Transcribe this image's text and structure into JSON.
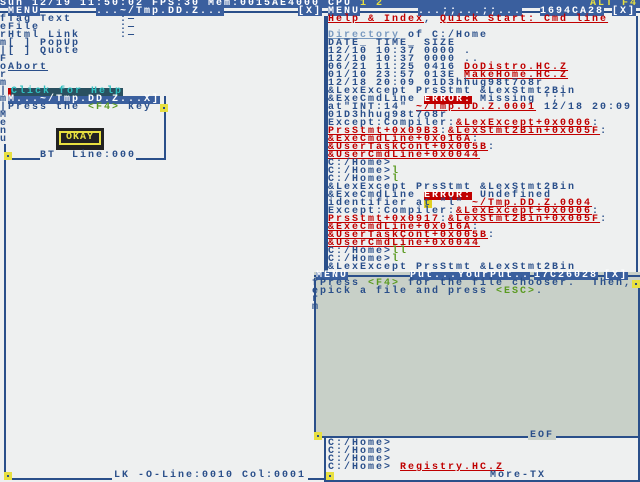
{
  "topbar": {
    "status": "Sun 12/19 11:50:02 FPS:30 Mem:0015AE4000 CPU ",
    "cpu": "1 2",
    "alt": "ALT F4"
  },
  "colors": {
    "bar": "#3a5f9e",
    "text": "#2a4f8a",
    "link": "#c00000",
    "green": "#5a9a20",
    "panel": "#c8d0c8"
  },
  "left_window": {
    "menu": "MENU",
    "title": "...~/Tmp.DD.Z...",
    "close": "[X]",
    "side": "ferm|Form|m|Menu",
    "status": "LK -O-Line:0010 Col:0001",
    "items": [
      [
        [
          "Tag Text",
          "n"
        ]
      ],
      [
        [
          "File",
          "n"
        ]
      ],
      [
        [
          "Html Link",
          "n"
        ]
      ],
      [
        [
          "[ ] PopUp",
          "n"
        ]
      ],
      [
        [
          "[ ] Quote",
          "n"
        ]
      ],
      [
        [
          "",
          "n"
        ]
      ],
      [
        [
          "Abort",
          "b"
        ]
      ]
    ],
    "fields": [
      ":—",
      ":—",
      ":—"
    ],
    "help": "Click for Help"
  },
  "popup": {
    "menu": "M",
    "title": "...~/Tmp.DD.Z...",
    "close": "X]",
    "text1": "Press the ",
    "key": "<F4>",
    "text2": " key",
    "ok": "OKAY",
    "status": "BT  Line:000"
  },
  "help_window": {
    "menu": "MENU",
    "title": "...;;...;;...",
    "addr": "1694CA28",
    "close": "[X]",
    "lines": [
      [
        [
          "Help & Index",
          "link"
        ],
        [
          ", ",
          "n"
        ],
        [
          "Quick Start: Cmd line",
          "link"
        ]
      ],
      [],
      [
        [
          "Directory",
          "dir"
        ],
        [
          " of C:/Home",
          "n"
        ]
      ],
      [
        [
          "DATE_ TIME_ SIZE",
          "n"
        ]
      ],
      [
        [
          "12/10 10:37 0000 ",
          "n"
        ],
        [
          ".",
          "n"
        ]
      ],
      [
        [
          "12/10 10:37 0000 ",
          "n"
        ],
        [
          "..",
          "n"
        ]
      ],
      [
        [
          "06/21 11:25 0416 ",
          "n"
        ],
        [
          "DoDistro.HC.Z",
          "link"
        ]
      ],
      [
        [
          "01/10 23:57 013E ",
          "n"
        ],
        [
          "MakeHome.HC.Z",
          "link"
        ]
      ],
      [
        [
          "12/18 20:09 01D3hhug98t7o8r",
          "n"
        ]
      ],
      [
        [
          "&LexExcept PrsStmt &LexStmt2Bin",
          "n"
        ]
      ],
      [
        [
          "&ExeCmdLine ",
          "n"
        ],
        [
          "ERROR:",
          "err"
        ],
        [
          " Missing ';'",
          "n"
        ]
      ],
      [
        [
          "at\"INT:14\" ",
          "n"
        ],
        [
          "~/Tmp.DD.Z.0001",
          "link"
        ],
        [
          " 12/18 20:09",
          "n"
        ]
      ],
      [
        [
          "01D3hhug98t7o8r",
          "n"
        ]
      ],
      [
        [
          "Except:Compiler:",
          "n"
        ],
        [
          "&LexExcept+0x0006",
          "link"
        ],
        [
          ":",
          "n"
        ]
      ],
      [
        [
          "PrsStmt+0x09B3",
          "link"
        ],
        [
          ":",
          "n"
        ],
        [
          "&LexStmt2Bin+0x005F",
          "link"
        ],
        [
          ":",
          "n"
        ]
      ],
      [
        [
          "&ExeCmdLine+0x016A",
          "link"
        ],
        [
          ":",
          "n"
        ]
      ],
      [
        [
          "&UserTaskCont+0x005B",
          "link"
        ],
        [
          ":",
          "n"
        ]
      ],
      [
        [
          "&UserCmdLine+0x0044",
          "link"
        ]
      ],
      [
        [
          "C:/Home>",
          "n"
        ]
      ],
      [
        [
          "C:/Home>",
          "n"
        ],
        [
          "l",
          "g"
        ]
      ],
      [
        [
          "C:/Home>",
          "n"
        ],
        [
          "l",
          "g"
        ]
      ],
      [
        [
          "&LexExcept PrsStmt &LexStmt2Bin",
          "n"
        ]
      ],
      [
        [
          "&ExeCmdLine ",
          "n"
        ],
        [
          "ERROR:",
          "err"
        ],
        [
          " Undefined",
          "n"
        ]
      ],
      [
        [
          "identifier a",
          "n"
        ],
        [
          "t",
          "y"
        ],
        [
          " \"l\" ",
          "n"
        ],
        [
          "~/Tmp.DD.Z.0004",
          "link"
        ]
      ],
      [
        [
          "Except:Compiler:",
          "n"
        ],
        [
          "&LexExcept+0x0006",
          "link"
        ],
        [
          ":",
          "n"
        ]
      ],
      [
        [
          "PrsStmt+0x0917",
          "link"
        ],
        [
          ":",
          "n"
        ],
        [
          "&LexStmt2Bin+0x005F",
          "link"
        ],
        [
          ":",
          "n"
        ]
      ],
      [
        [
          "&ExeCmdLine+0x016A",
          "link"
        ],
        [
          ":",
          "n"
        ]
      ],
      [
        [
          "&UserTaskCont+0x005B",
          "link"
        ],
        [
          ":",
          "n"
        ]
      ],
      [
        [
          "&UserCmdLine+0x0044",
          "link"
        ]
      ],
      [
        [
          "C:/Home>",
          "n"
        ],
        [
          "ll",
          "g"
        ]
      ],
      [
        [
          "C:/Home>",
          "n"
        ],
        [
          "l",
          "g"
        ]
      ],
      [
        [
          "&LexExcept PrsStmt &LexStmt2Bin",
          "n"
        ]
      ]
    ]
  },
  "put_window": {
    "menu": "MENU",
    "title": "Put...YourPut..",
    "addr": "17C26028",
    "close": "[X]",
    "side": "ferm|",
    "lines": [
      [
        [
          "Press ",
          "n"
        ],
        [
          "<F4>",
          "g"
        ],
        [
          " for the file chooser.  Then,",
          "n"
        ]
      ],
      [
        [
          "pick a file and press ",
          "n"
        ],
        [
          "<ESC>",
          "g"
        ],
        [
          ".",
          "n"
        ]
      ]
    ],
    "status": "EOF"
  },
  "cmd_window": {
    "status": "More-TX",
    "lines": [
      [
        [
          "C:/Home>",
          "n"
        ]
      ],
      [
        [
          "C:/Home>",
          "n"
        ]
      ],
      [
        [
          "C:/Home>",
          "n"
        ]
      ],
      [
        [
          "C:/Home> ",
          "n"
        ],
        [
          "Registry.HC.Z",
          "link"
        ]
      ]
    ]
  }
}
